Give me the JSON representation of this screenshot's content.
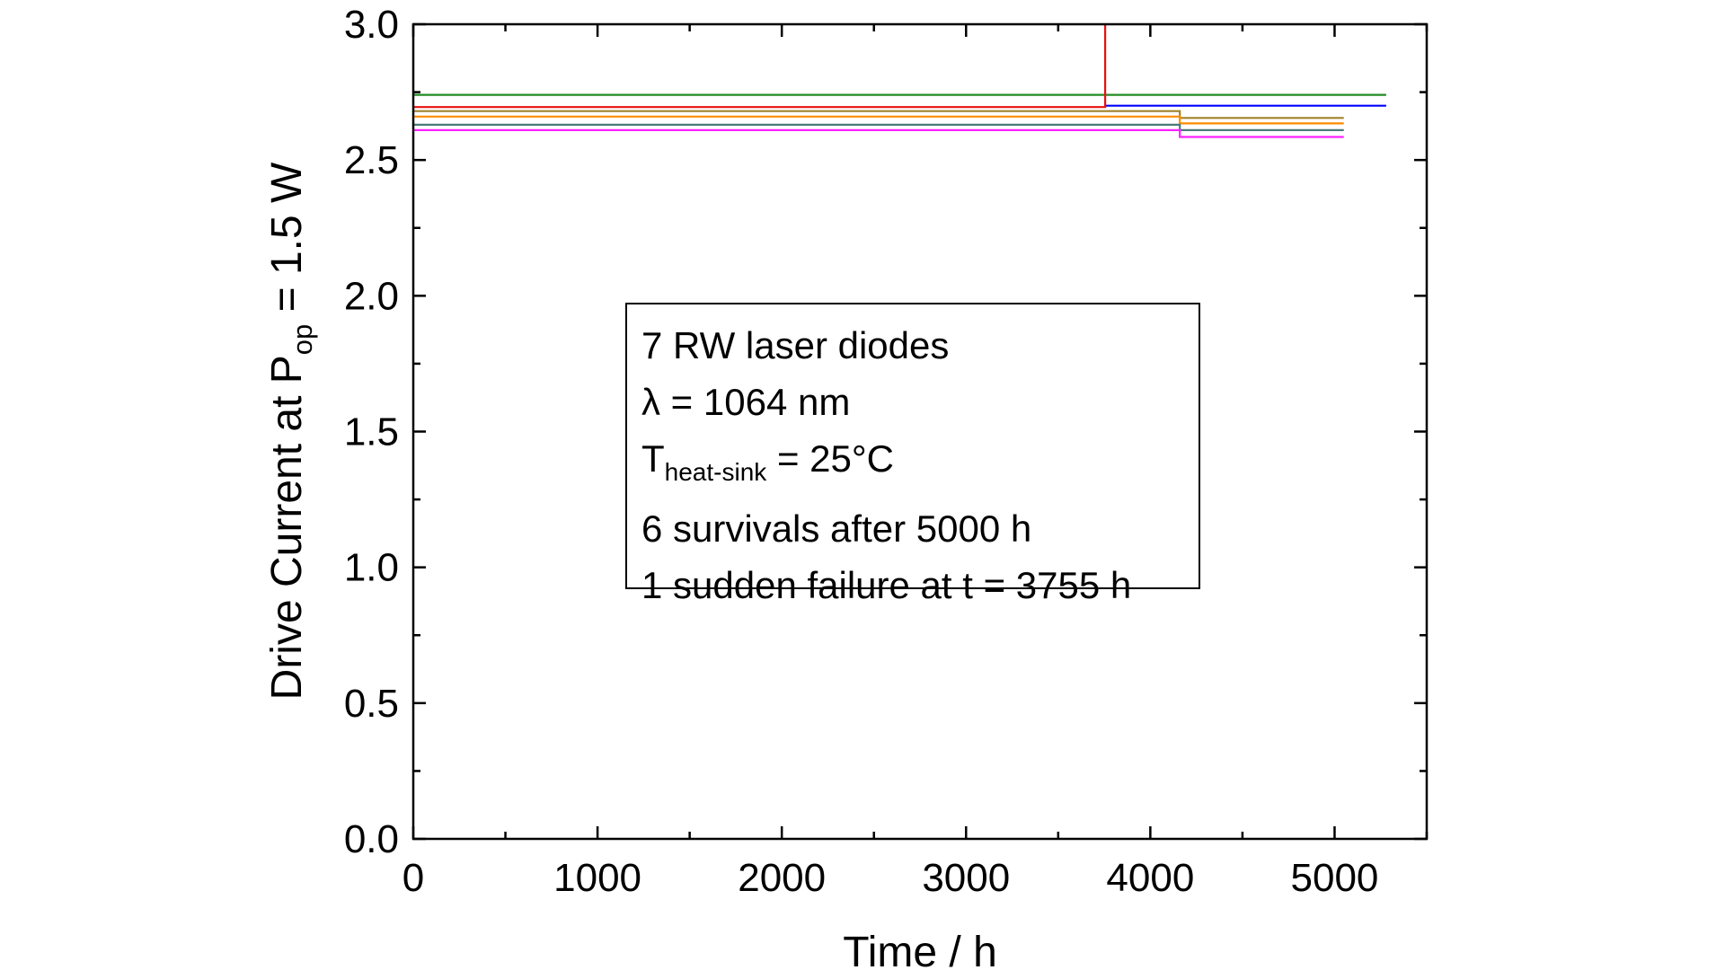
{
  "chart_data": {
    "type": "line",
    "xlabel": "Time / h",
    "ylabel": {
      "prefix": "Drive Current at P",
      "subscript": "op",
      "suffix": " = 1.5 W"
    },
    "xlim": [
      0,
      5500
    ],
    "ylim": [
      0.0,
      3.0
    ],
    "x_ticks": [
      0,
      1000,
      2000,
      3000,
      4000,
      5000
    ],
    "x_tick_labels": [
      "0",
      "1000",
      "2000",
      "3000",
      "4000",
      "5000"
    ],
    "y_ticks": [
      0.0,
      0.5,
      1.0,
      1.5,
      2.0,
      2.5,
      3.0
    ],
    "y_tick_labels": [
      "0.0",
      "0.5",
      "1.0",
      "1.5",
      "2.0",
      "2.5",
      "3.0"
    ],
    "x_minor_step": 500,
    "y_minor_step": 0.25,
    "grid": false,
    "series": [
      {
        "color": "#228b22",
        "x": [
          0,
          5280
        ],
        "y": [
          2.74,
          2.74
        ]
      },
      {
        "color": "#0000ff",
        "x": [
          3755,
          5280
        ],
        "y": [
          2.7,
          2.7
        ]
      },
      {
        "color": "#e81010",
        "x": [
          0,
          3755,
          3755
        ],
        "y": [
          2.695,
          2.695,
          3.0
        ]
      },
      {
        "color": "#a0822d",
        "x": [
          0,
          4160,
          4160,
          5050
        ],
        "y": [
          2.68,
          2.68,
          2.655,
          2.655
        ]
      },
      {
        "color": "#ff8c00",
        "x": [
          0,
          4160,
          4160,
          5050
        ],
        "y": [
          2.66,
          2.66,
          2.635,
          2.635
        ]
      },
      {
        "color": "#4a7a7a",
        "x": [
          0,
          4160,
          4160,
          5050
        ],
        "y": [
          2.63,
          2.63,
          2.61,
          2.61
        ]
      },
      {
        "color": "#ff20ff",
        "x": [
          0,
          4160,
          4160,
          5050
        ],
        "y": [
          2.61,
          2.61,
          2.585,
          2.585
        ]
      }
    ]
  },
  "annotation": {
    "line1": "7 RW laser diodes",
    "line2": "λ = 1064 nm",
    "line3_prefix": "T",
    "line3_sub": "heat-sink",
    "line3_suffix": " = 25°C",
    "line4": "6 survivals after 5000 h",
    "line5": "1 sudden failure at t = 3755 h"
  }
}
